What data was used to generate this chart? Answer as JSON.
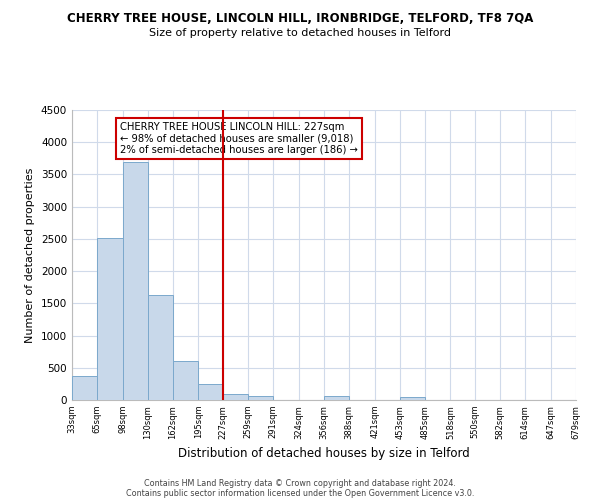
{
  "title": "CHERRY TREE HOUSE, LINCOLN HILL, IRONBRIDGE, TELFORD, TF8 7QA",
  "subtitle": "Size of property relative to detached houses in Telford",
  "xlabel": "Distribution of detached houses by size in Telford",
  "ylabel": "Number of detached properties",
  "bar_edges": [
    33,
    65,
    98,
    130,
    162,
    195,
    227,
    259,
    291,
    324,
    356,
    388,
    421,
    453,
    485,
    518,
    550,
    582,
    614,
    647,
    679
  ],
  "bar_heights": [
    380,
    2520,
    3700,
    1630,
    600,
    250,
    100,
    55,
    0,
    0,
    60,
    0,
    0,
    40,
    0,
    0,
    0,
    0,
    0,
    0
  ],
  "bar_color": "#c8d8ea",
  "bar_edge_color": "#7ba8cc",
  "property_line_x": 227,
  "property_line_color": "#cc0000",
  "annotation_text": "CHERRY TREE HOUSE LINCOLN HILL: 227sqm\n← 98% of detached houses are smaller (9,018)\n2% of semi-detached houses are larger (186) →",
  "annotation_box_color": "#ffffff",
  "annotation_box_edge_color": "#cc0000",
  "ylim": [
    0,
    4500
  ],
  "yticks": [
    0,
    500,
    1000,
    1500,
    2000,
    2500,
    3000,
    3500,
    4000,
    4500
  ],
  "tick_labels": [
    "33sqm",
    "65sqm",
    "98sqm",
    "130sqm",
    "162sqm",
    "195sqm",
    "227sqm",
    "259sqm",
    "291sqm",
    "324sqm",
    "356sqm",
    "388sqm",
    "421sqm",
    "453sqm",
    "485sqm",
    "518sqm",
    "550sqm",
    "582sqm",
    "614sqm",
    "647sqm",
    "679sqm"
  ],
  "footer_line1": "Contains HM Land Registry data © Crown copyright and database right 2024.",
  "footer_line2": "Contains public sector information licensed under the Open Government Licence v3.0.",
  "background_color": "#ffffff",
  "grid_color": "#d0daea"
}
